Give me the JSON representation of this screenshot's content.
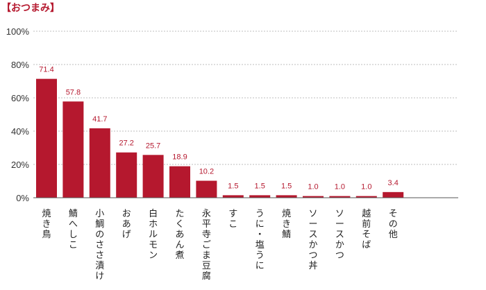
{
  "chart_data": {
    "type": "bar",
    "title": "【おつまみ】",
    "xlabel": "",
    "ylabel": "",
    "ylim": [
      0,
      100
    ],
    "yticks": [
      "0%",
      "20%",
      "40%",
      "60%",
      "80%",
      "100%"
    ],
    "grid": true,
    "legend": "none",
    "bar_color": "#b5182e",
    "categories": [
      "焼き鳥",
      "鯖へしこ",
      "小鯛のささ漬け",
      "おあげ",
      "白ホルモン",
      "たくあん煮",
      "永平寺ごま豆腐",
      "すこ",
      "うに・塩うに",
      "焼き鯖",
      "ソースかつ丼",
      "ソースかつ",
      "越前そば",
      "その他"
    ],
    "values": [
      71.4,
      57.8,
      41.7,
      27.2,
      25.7,
      18.9,
      10.2,
      1.5,
      1.5,
      1.5,
      1.0,
      1.0,
      1.0,
      3.4
    ],
    "value_labels": [
      "71.4",
      "57.8",
      "41.7",
      "27.2",
      "25.7",
      "18.9",
      "10.2",
      "1.5",
      "1.5",
      "1.5",
      "1.0",
      "1.0",
      "1.0",
      "3.4"
    ]
  }
}
